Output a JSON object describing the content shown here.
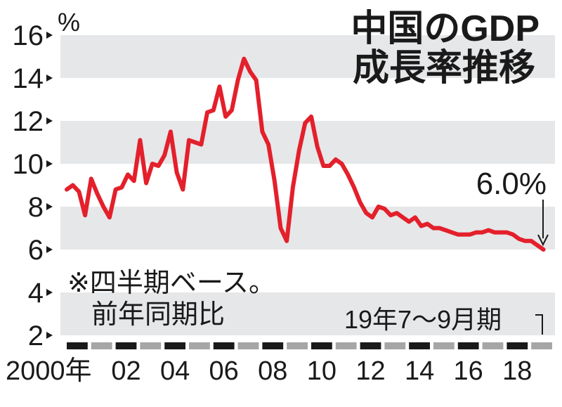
{
  "chart_data": {
    "type": "line",
    "title_line1": "中国のGDP",
    "title_line2": "成長率推移",
    "unit": "%",
    "note_line1": "※四半期ベース。",
    "note_line2": "前年同期比",
    "callout_value": "6.0%",
    "period_label": "19年7～9月期",
    "xlabel": "",
    "ylabel": "",
    "ylim": [
      1.5,
      16.5
    ],
    "xlim": [
      2000.0,
      2020.0
    ],
    "yticks": [
      {
        "value": 2,
        "label": "2"
      },
      {
        "value": 4,
        "label": "4"
      },
      {
        "value": 6,
        "label": "6"
      },
      {
        "value": 8,
        "label": "8"
      },
      {
        "value": 10,
        "label": "10"
      },
      {
        "value": 12,
        "label": "12"
      },
      {
        "value": 14,
        "label": "14"
      },
      {
        "value": 16,
        "label": "16"
      }
    ],
    "xticks": [
      {
        "value": 2000,
        "label": "2000年"
      },
      {
        "value": 2002,
        "label": "02"
      },
      {
        "value": 2004,
        "label": "04"
      },
      {
        "value": 2006,
        "label": "06"
      },
      {
        "value": 2008,
        "label": "08"
      },
      {
        "value": 2010,
        "label": "10"
      },
      {
        "value": 2012,
        "label": "12"
      },
      {
        "value": 2014,
        "label": "14"
      },
      {
        "value": 2016,
        "label": "16"
      },
      {
        "value": 2018,
        "label": "18"
      }
    ],
    "grid_bands": true,
    "colors": {
      "line": "#e3202b",
      "band": "#e6e7e9",
      "year_dark": "#1a1a1a",
      "year_light": "#a6a6a6",
      "text": "#1a1a1a"
    },
    "series": [
      {
        "x": [
          2000.0,
          2000.25,
          2000.5,
          2000.75,
          2001.0,
          2001.25,
          2001.5,
          2001.75,
          2002.0,
          2002.25,
          2002.5,
          2002.75,
          2003.0,
          2003.25,
          2003.5,
          2003.75,
          2004.0,
          2004.25,
          2004.5,
          2004.75,
          2005.0,
          2005.25,
          2005.5,
          2005.75,
          2006.0,
          2006.25,
          2006.5,
          2006.75,
          2007.0,
          2007.25,
          2007.5,
          2007.75,
          2008.0,
          2008.25,
          2008.5,
          2008.75,
          2009.0,
          2009.25,
          2009.5,
          2009.75,
          2010.0,
          2010.25,
          2010.5,
          2010.75,
          2011.0,
          2011.25,
          2011.5,
          2011.75,
          2012.0,
          2012.25,
          2012.5,
          2012.75,
          2013.0,
          2013.25,
          2013.5,
          2013.75,
          2014.0,
          2014.25,
          2014.5,
          2014.75,
          2015.0,
          2015.25,
          2015.5,
          2015.75,
          2016.0,
          2016.25,
          2016.5,
          2016.75,
          2017.0,
          2017.25,
          2017.5,
          2017.75,
          2018.0,
          2018.25,
          2018.5,
          2018.75,
          2019.0,
          2019.25,
          2019.5
        ],
        "y": [
          8.8,
          9.0,
          8.7,
          7.6,
          9.3,
          8.6,
          8.0,
          7.5,
          8.8,
          8.9,
          9.5,
          9.2,
          11.1,
          9.1,
          10.0,
          9.9,
          10.4,
          11.5,
          9.6,
          8.8,
          11.1,
          11.0,
          10.9,
          12.4,
          12.5,
          13.6,
          12.2,
          12.5,
          13.9,
          14.9,
          14.3,
          13.9,
          11.5,
          10.9,
          9.2,
          7.0,
          6.4,
          8.9,
          10.6,
          11.9,
          12.2,
          10.8,
          9.9,
          9.9,
          10.2,
          10.0,
          9.5,
          8.9,
          8.2,
          7.7,
          7.5,
          8.0,
          7.9,
          7.6,
          7.7,
          7.5,
          7.3,
          7.5,
          7.1,
          7.2,
          7.0,
          7.0,
          6.9,
          6.8,
          6.7,
          6.7,
          6.7,
          6.8,
          6.8,
          6.9,
          6.8,
          6.8,
          6.8,
          6.7,
          6.5,
          6.4,
          6.4,
          6.2,
          6.0
        ]
      }
    ]
  }
}
